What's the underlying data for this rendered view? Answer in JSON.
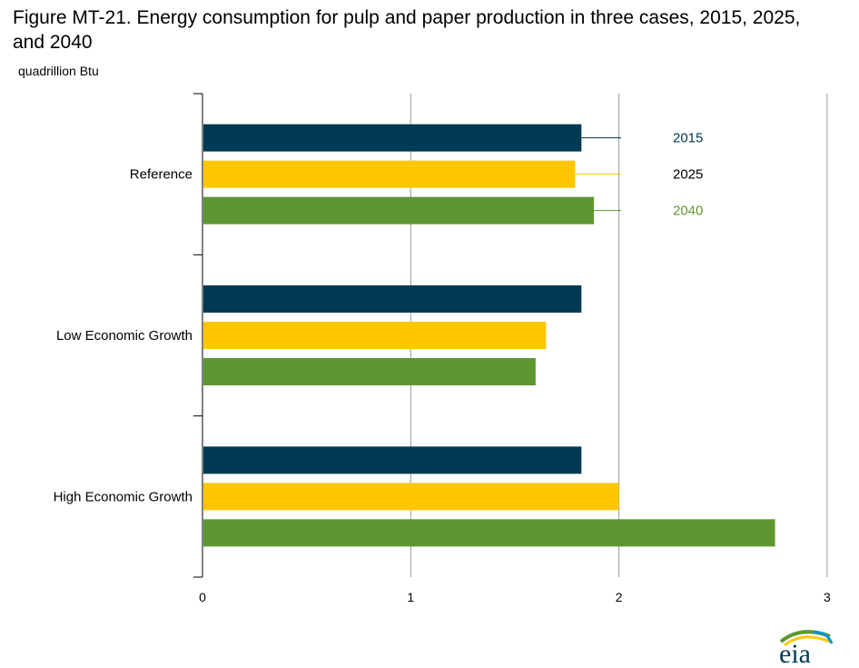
{
  "title": "Figure MT-21. Energy consumption for pulp and paper production in three cases, 2015, 2025, and 2040",
  "unit_label": "quadrillion Btu",
  "colors": {
    "2015": "#003953",
    "2025": "#ffc700",
    "2040": "#5d9732",
    "grid": "#9b9b9b"
  },
  "logo_text": "eia",
  "chart_data": {
    "type": "bar",
    "orientation": "horizontal",
    "categories": [
      "Reference",
      "Low Economic Growth",
      "High Economic Growth"
    ],
    "series": [
      {
        "name": "2015",
        "values": [
          1.82,
          1.82,
          1.82
        ]
      },
      {
        "name": "2025",
        "values": [
          1.79,
          1.65,
          2.0
        ]
      },
      {
        "name": "2040",
        "values": [
          1.88,
          1.6,
          2.75
        ]
      }
    ],
    "xlim": [
      0,
      3
    ],
    "xticks": [
      "0",
      "1",
      "2",
      "3"
    ],
    "grid": true,
    "legend": "inline labels at right of Reference bars"
  }
}
